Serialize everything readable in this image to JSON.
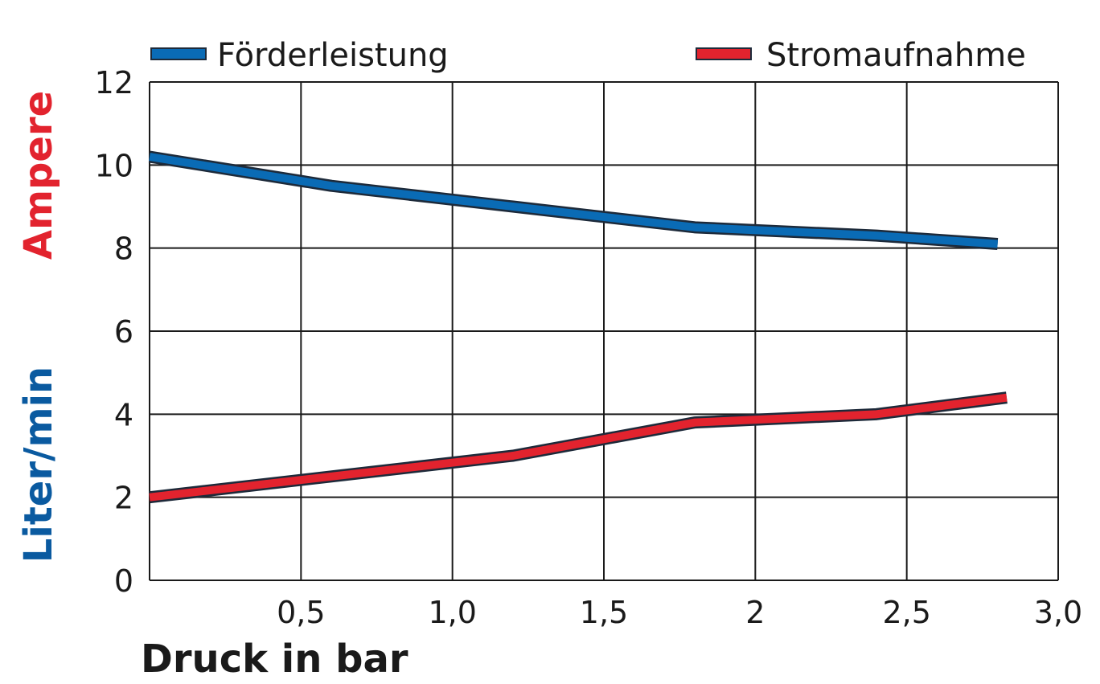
{
  "chart_data": {
    "type": "line",
    "xlabel": "Druck in bar",
    "ylabel_top": "Ampere",
    "ylabel_bottom": "Liter/min",
    "xlim": [
      0,
      3.0
    ],
    "ylim": [
      0,
      12
    ],
    "x_ticks": [
      {
        "value": 0.5,
        "label": "0,5"
      },
      {
        "value": 1.0,
        "label": "1,0"
      },
      {
        "value": 1.5,
        "label": "1,5"
      },
      {
        "value": 2.0,
        "label": "2"
      },
      {
        "value": 2.5,
        "label": "2,5"
      },
      {
        "value": 3.0,
        "label": "3,0"
      }
    ],
    "y_ticks": [
      {
        "value": 0,
        "label": "0"
      },
      {
        "value": 2,
        "label": "2"
      },
      {
        "value": 4,
        "label": "4"
      },
      {
        "value": 6,
        "label": "6"
      },
      {
        "value": 8,
        "label": "8"
      },
      {
        "value": 10,
        "label": "10"
      },
      {
        "value": 12,
        "label": "12"
      }
    ],
    "grid": true,
    "legend_position": "top",
    "series": [
      {
        "name": "Förderleistung",
        "color": "#0a6bb5",
        "x": [
          0,
          0.6,
          1.2,
          1.8,
          2.4,
          2.8
        ],
        "y": [
          10.2,
          9.5,
          9.0,
          8.5,
          8.3,
          8.1
        ]
      },
      {
        "name": "Stromaufnahme",
        "color": "#e2232e",
        "x": [
          0,
          0.6,
          1.2,
          1.8,
          2.4,
          2.83
        ],
        "y": [
          2.0,
          2.5,
          3.0,
          3.8,
          4.0,
          4.4
        ]
      }
    ],
    "ylabel_colors": {
      "top": "#e2232e",
      "bottom": "#0a5aa0"
    }
  }
}
